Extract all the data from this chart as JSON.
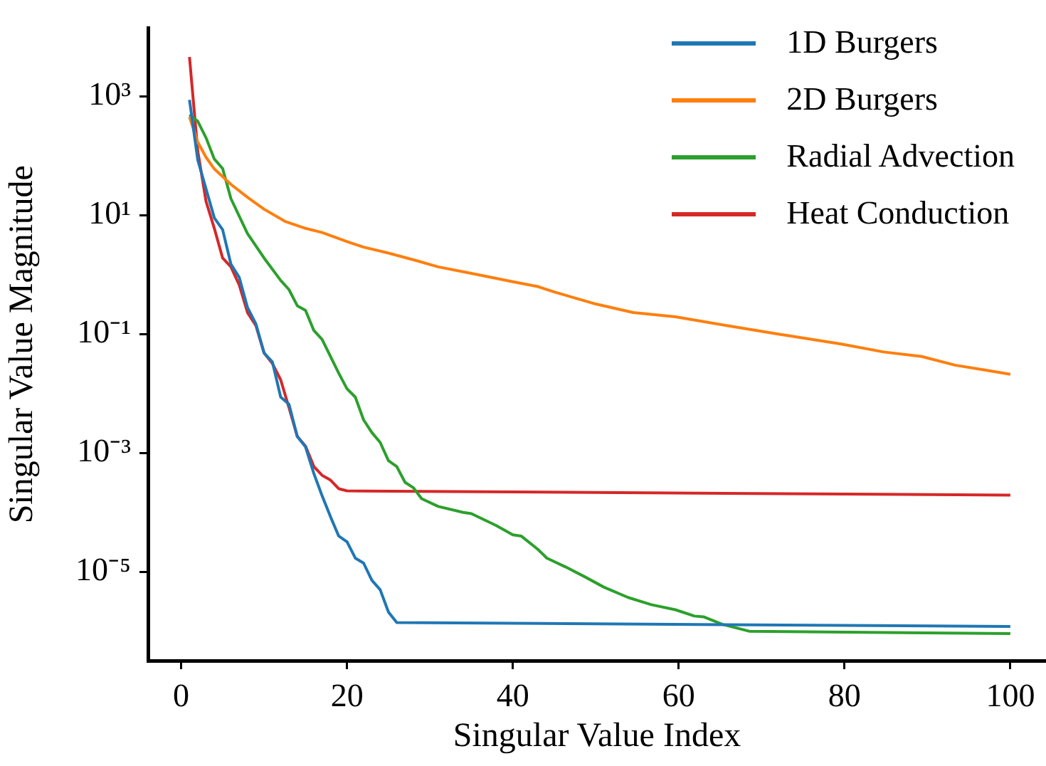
{
  "chart_data": {
    "type": "line",
    "xlabel": "Singular Value Index",
    "ylabel": "Singular Value Magnitude",
    "log": "y",
    "xlim": [
      -4,
      104.3
    ],
    "xticks": [
      0,
      20,
      40,
      60,
      80,
      100
    ],
    "ylim": [
      3.2e-07,
      14000
    ],
    "yticks": [
      {
        "value": 1000,
        "label": "10³"
      },
      {
        "value": 10,
        "label": "10¹"
      },
      {
        "value": 0.1,
        "label": "10⁻¹"
      },
      {
        "value": 0.001,
        "label": "10⁻³"
      },
      {
        "value": 1e-05,
        "label": "10⁻⁵"
      }
    ],
    "legend": "top right",
    "grid": false,
    "series": [
      {
        "name": "1D Burgers",
        "color": "#1f77b4",
        "x": [
          1,
          2,
          4,
          5,
          6,
          7,
          8,
          9,
          10,
          11,
          12,
          13,
          14,
          15,
          16,
          17,
          18,
          19,
          20,
          21,
          22,
          23,
          24,
          25,
          26,
          100
        ],
        "values": [
          870,
          85,
          9,
          5.7,
          1.5,
          0.9,
          0.28,
          0.15,
          0.048,
          0.034,
          0.0087,
          0.0066,
          0.0019,
          0.00126,
          0.00045,
          0.00019,
          8.5e-05,
          4e-05,
          3.2e-05,
          1.7e-05,
          1.4e-05,
          7.2e-06,
          5e-06,
          2.1e-06,
          1.4e-06,
          1.2e-06
        ]
      },
      {
        "name": "2D Burgers",
        "color": "#ff7f0e",
        "x": [
          1,
          2,
          3,
          4,
          6,
          8,
          10,
          12.5,
          15,
          17,
          20,
          22,
          25,
          28.5,
          31,
          35,
          40,
          43,
          45,
          50,
          54.5,
          59.6,
          65.9,
          71.6,
          79.6,
          84.7,
          89.3,
          93.3,
          96.8,
          100
        ],
        "values": [
          450,
          170,
          94,
          60,
          33,
          20,
          12.6,
          7.9,
          6,
          5.1,
          3.6,
          2.9,
          2.3,
          1.7,
          1.35,
          1.05,
          0.76,
          0.63,
          0.51,
          0.32,
          0.23,
          0.195,
          0.138,
          0.102,
          0.068,
          0.05,
          0.042,
          0.03,
          0.025,
          0.021
        ]
      },
      {
        "name": "Radial Advection",
        "color": "#2ca02c",
        "x": [
          1,
          2,
          3,
          4,
          5,
          6,
          8,
          10,
          12,
          13,
          14,
          15,
          16,
          17,
          19,
          20,
          21,
          22,
          23,
          24,
          25,
          26,
          27,
          28,
          29,
          31,
          34,
          35,
          38,
          40,
          41,
          43,
          44.1,
          46.4,
          48.7,
          51,
          53.9,
          56.7,
          59.6,
          61.9,
          63,
          65.3,
          68.5,
          100
        ],
        "values": [
          490,
          380,
          200,
          88,
          61,
          19,
          4.9,
          1.9,
          0.8,
          0.56,
          0.3,
          0.25,
          0.115,
          0.081,
          0.022,
          0.012,
          0.0087,
          0.0036,
          0.0022,
          0.0015,
          0.00074,
          0.00059,
          0.00032,
          0.00026,
          0.00017,
          0.000126,
          0.0001,
          9.5e-05,
          6e-05,
          4.2e-05,
          4e-05,
          2.4e-05,
          1.7e-05,
          1.2e-05,
          8.2e-06,
          5.5e-06,
          3.7e-06,
          2.8e-06,
          2.3e-06,
          1.8e-06,
          1.75e-06,
          1.3e-06,
          1e-06,
          9.1e-07
        ]
      },
      {
        "name": "Heat Conduction",
        "color": "#d62728",
        "x": [
          1,
          2,
          3,
          4,
          5,
          6,
          7,
          8,
          9,
          10,
          11,
          12,
          13,
          14,
          15,
          16,
          17,
          18,
          19,
          20,
          100
        ],
        "values": [
          4600,
          120,
          17,
          6,
          1.9,
          1.35,
          0.67,
          0.23,
          0.14,
          0.048,
          0.032,
          0.017,
          0.0058,
          0.0019,
          0.0013,
          0.00059,
          0.00042,
          0.00035,
          0.00025,
          0.00023,
          0.000195
        ]
      }
    ]
  }
}
